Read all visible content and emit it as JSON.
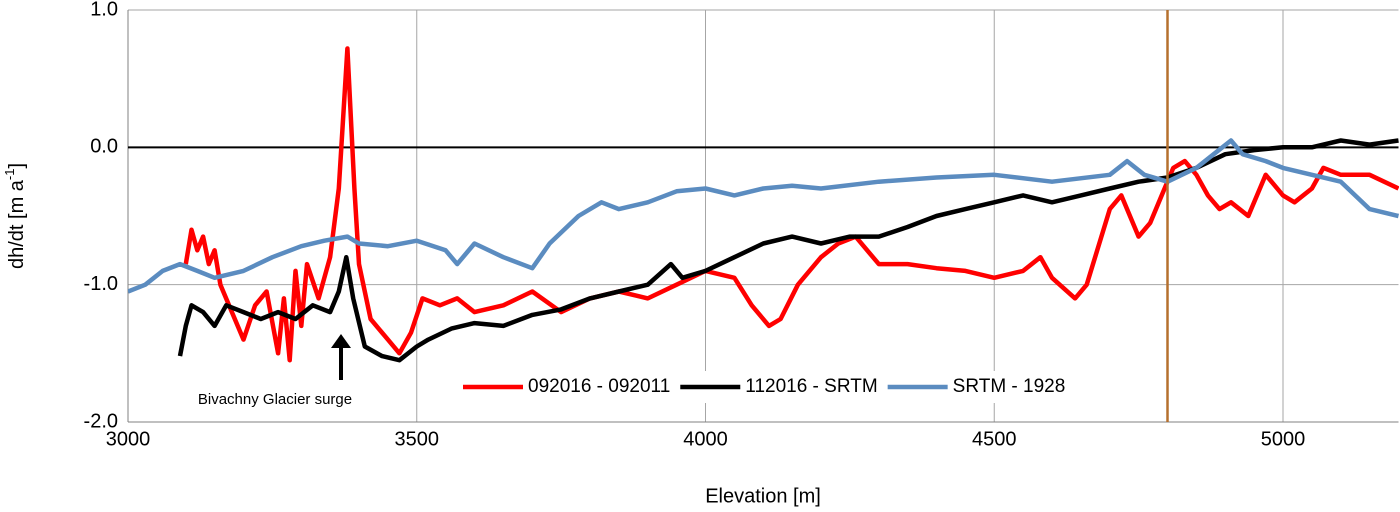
{
  "chart_data": {
    "type": "line",
    "xlabel": "Elevation [m]",
    "ylabel": {
      "text": "dh/dt  [m a",
      "sup": "-1",
      "end": "]"
    },
    "annotation": "Bivachny Glacier surge",
    "xlim": [
      3000,
      5200
    ],
    "xticks": [
      3000,
      3500,
      4000,
      4500,
      5000
    ],
    "ylim": [
      -2,
      1
    ],
    "yticks": [
      {
        "value": -2,
        "label": "-2.0"
      },
      {
        "value": -1,
        "label": "-1.0"
      },
      {
        "value": 0,
        "label": "0.0"
      },
      {
        "value": 1,
        "label": "1.0"
      }
    ],
    "grid": true,
    "legend": "lower center",
    "vline": {
      "x": 4800,
      "color": "#b5702e"
    },
    "series": [
      {
        "name": "092016 - 092011",
        "color": "#ff0000",
        "x": [
          3100,
          3110,
          3120,
          3130,
          3140,
          3150,
          3160,
          3180,
          3200,
          3220,
          3240,
          3260,
          3270,
          3280,
          3290,
          3300,
          3310,
          3330,
          3350,
          3365,
          3380,
          3392,
          3400,
          3420,
          3450,
          3470,
          3490,
          3510,
          3540,
          3570,
          3600,
          3650,
          3700,
          3750,
          3800,
          3850,
          3900,
          3950,
          4000,
          4050,
          4080,
          4110,
          4130,
          4160,
          4200,
          4230,
          4260,
          4300,
          4350,
          4400,
          4450,
          4500,
          4550,
          4580,
          4600,
          4640,
          4660,
          4700,
          4720,
          4750,
          4770,
          4790,
          4810,
          4830,
          4850,
          4870,
          4890,
          4910,
          4940,
          4970,
          5000,
          5020,
          5050,
          5070,
          5100,
          5150,
          5200
        ],
        "values": [
          -0.85,
          -0.6,
          -0.75,
          -0.65,
          -0.85,
          -0.75,
          -1.0,
          -1.2,
          -1.4,
          -1.15,
          -1.05,
          -1.5,
          -1.1,
          -1.55,
          -0.9,
          -1.3,
          -0.85,
          -1.1,
          -0.8,
          -0.3,
          0.72,
          -0.3,
          -0.85,
          -1.25,
          -1.4,
          -1.5,
          -1.35,
          -1.1,
          -1.15,
          -1.1,
          -1.2,
          -1.15,
          -1.05,
          -1.2,
          -1.1,
          -1.05,
          -1.1,
          -1.0,
          -0.9,
          -0.95,
          -1.15,
          -1.3,
          -1.25,
          -1.0,
          -0.8,
          -0.7,
          -0.65,
          -0.85,
          -0.85,
          -0.88,
          -0.9,
          -0.95,
          -0.9,
          -0.8,
          -0.95,
          -1.1,
          -1.0,
          -0.45,
          -0.35,
          -0.65,
          -0.55,
          -0.35,
          -0.15,
          -0.1,
          -0.2,
          -0.35,
          -0.45,
          -0.4,
          -0.5,
          -0.2,
          -0.35,
          -0.4,
          -0.3,
          -0.15,
          -0.2,
          -0.2,
          -0.3
        ]
      },
      {
        "name": "112016 - SRTM",
        "color": "#000000",
        "x": [
          3090,
          3100,
          3110,
          3130,
          3150,
          3170,
          3200,
          3230,
          3260,
          3290,
          3320,
          3350,
          3365,
          3378,
          3390,
          3410,
          3440,
          3470,
          3500,
          3520,
          3560,
          3600,
          3650,
          3700,
          3750,
          3800,
          3850,
          3900,
          3940,
          3960,
          4000,
          4050,
          4100,
          4150,
          4200,
          4250,
          4300,
          4350,
          4400,
          4450,
          4500,
          4550,
          4600,
          4650,
          4700,
          4750,
          4800,
          4850,
          4900,
          4950,
          5000,
          5050,
          5100,
          5150,
          5200
        ],
        "values": [
          -1.52,
          -1.3,
          -1.15,
          -1.2,
          -1.3,
          -1.15,
          -1.2,
          -1.25,
          -1.2,
          -1.25,
          -1.15,
          -1.2,
          -1.05,
          -0.8,
          -1.1,
          -1.45,
          -1.52,
          -1.55,
          -1.45,
          -1.4,
          -1.32,
          -1.28,
          -1.3,
          -1.22,
          -1.18,
          -1.1,
          -1.05,
          -1.0,
          -0.85,
          -0.95,
          -0.9,
          -0.8,
          -0.7,
          -0.65,
          -0.7,
          -0.65,
          -0.65,
          -0.58,
          -0.5,
          -0.45,
          -0.4,
          -0.35,
          -0.4,
          -0.35,
          -0.3,
          -0.25,
          -0.22,
          -0.15,
          -0.05,
          -0.02,
          0.0,
          0.0,
          0.05,
          0.02,
          0.05
        ]
      },
      {
        "name": "SRTM - 1928",
        "color": "#5b8cc0",
        "x": [
          3000,
          3030,
          3060,
          3090,
          3120,
          3150,
          3200,
          3250,
          3300,
          3340,
          3380,
          3400,
          3450,
          3500,
          3550,
          3570,
          3600,
          3650,
          3700,
          3730,
          3780,
          3820,
          3850,
          3900,
          3950,
          4000,
          4050,
          4100,
          4150,
          4200,
          4300,
          4400,
          4500,
          4600,
          4700,
          4730,
          4760,
          4800,
          4850,
          4880,
          4910,
          4930,
          4970,
          5000,
          5050,
          5100,
          5150,
          5200
        ],
        "values": [
          -1.05,
          -1.0,
          -0.9,
          -0.85,
          -0.9,
          -0.95,
          -0.9,
          -0.8,
          -0.72,
          -0.68,
          -0.65,
          -0.7,
          -0.72,
          -0.68,
          -0.75,
          -0.85,
          -0.7,
          -0.8,
          -0.88,
          -0.7,
          -0.5,
          -0.4,
          -0.45,
          -0.4,
          -0.32,
          -0.3,
          -0.35,
          -0.3,
          -0.28,
          -0.3,
          -0.25,
          -0.22,
          -0.2,
          -0.25,
          -0.2,
          -0.1,
          -0.2,
          -0.25,
          -0.15,
          -0.05,
          0.05,
          -0.05,
          -0.1,
          -0.15,
          -0.2,
          -0.25,
          -0.45,
          -0.5
        ]
      }
    ]
  }
}
